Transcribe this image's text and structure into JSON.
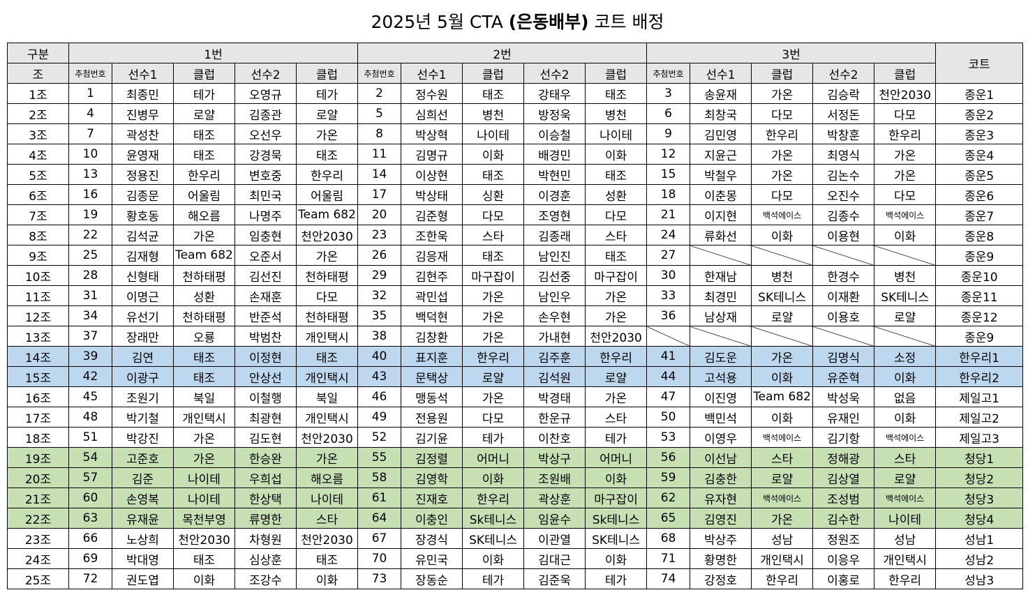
{
  "title": {
    "prefix": "2025년 5월 CTA ",
    "bold": "(은동배부)",
    "suffix": " 코트 배정"
  },
  "table": {
    "header": {
      "section": "구분",
      "group": "조",
      "groups": [
        "1번",
        "2번",
        "3번"
      ],
      "court": "코트",
      "columns": [
        "추첨번호",
        "선수1",
        "클럽",
        "선수2",
        "클럽"
      ]
    },
    "rows": [
      [
        "1조",
        1,
        "최종민",
        "테가",
        "오영규",
        "테가",
        2,
        "정수원",
        "태조",
        "강태우",
        "태조",
        3,
        "송윤재",
        "가온",
        "김승락",
        "천안2030",
        "종운1"
      ],
      [
        "2조",
        4,
        "진병무",
        "로얄",
        "김종관",
        "로얄",
        5,
        "심희선",
        "병천",
        "방정욱",
        "병천",
        6,
        "최창국",
        "다모",
        "서정돈",
        "다모",
        "종운2"
      ],
      [
        "3조",
        7,
        "곽성찬",
        "태조",
        "오선우",
        "가온",
        8,
        "박상혁",
        "나이테",
        "이승철",
        "나이테",
        9,
        "김민영",
        "한우리",
        "박창훈",
        "한우리",
        "종운3"
      ],
      [
        "4조",
        10,
        "윤영재",
        "태조",
        "강경묵",
        "태조",
        11,
        "김명규",
        "이화",
        "배경민",
        "이화",
        12,
        "지윤근",
        "가온",
        "최영식",
        "가온",
        "종운4"
      ],
      [
        "5조",
        13,
        "정용진",
        "한우리",
        "변호중",
        "한우리",
        14,
        "이상현",
        "태조",
        "박현민",
        "태조",
        15,
        "박철우",
        "가온",
        "김논수",
        "가온",
        "종운5"
      ],
      [
        "6조",
        16,
        "김종문",
        "어울림",
        "최민국",
        "어울림",
        17,
        "박상태",
        "싱환",
        "이경훈",
        "성환",
        18,
        "이춘몽",
        "다모",
        "오진수",
        "다모",
        "종운6"
      ],
      [
        "7조",
        19,
        "황호동",
        "해오름",
        "나명주",
        "Team 682",
        20,
        "김준형",
        "다모",
        "조영현",
        "다모",
        21,
        "이지현",
        "백석에이스",
        "김종수",
        "백석에이스",
        "종운7"
      ],
      [
        "8조",
        22,
        "김석균",
        "가온",
        "임충현",
        "천안2030",
        23,
        "조한욱",
        "스타",
        "김종래",
        "스타",
        24,
        "류화선",
        "이화",
        "이용현",
        "이화",
        "종운8"
      ],
      [
        "9조",
        25,
        "김재형",
        "Team 682",
        "오준서",
        "가온",
        26,
        "김응재",
        "태조",
        "남인진",
        "태조",
        27,
        null,
        null,
        null,
        null,
        "종운9"
      ],
      [
        "10조",
        28,
        "신형태",
        "천하태평",
        "김선진",
        "천하태평",
        29,
        "김현주",
        "마구잡이",
        "김선중",
        "마구잡이",
        30,
        "한재남",
        "병천",
        "한경수",
        "병천",
        "종운10"
      ],
      [
        "11조",
        31,
        "이명근",
        "성환",
        "손재훈",
        "다모",
        32,
        "곽민섭",
        "가온",
        "남인우",
        "가온",
        33,
        "최경민",
        "SK테니스",
        "이재환",
        "SK테니스",
        "종운11"
      ],
      [
        "12조",
        34,
        "유선기",
        "천하태평",
        "반준석",
        "천하태평",
        35,
        "백덕현",
        "가온",
        "손우현",
        "가온",
        36,
        "남상재",
        "로얄",
        "이용호",
        "로얄",
        "종운12"
      ],
      [
        "13조",
        37,
        "장래만",
        "오룡",
        "박범찬",
        "개인택시",
        38,
        "김창환",
        "가온",
        "가내현",
        "천안2030",
        null,
        null,
        null,
        null,
        null,
        "종운9"
      ],
      [
        "14조",
        39,
        "김연",
        "태조",
        "이정현",
        "태조",
        40,
        "표지훈",
        "한우리",
        "김주훈",
        "한우리",
        41,
        "김도운",
        "가온",
        "김명식",
        "소정",
        "한우리1"
      ],
      [
        "15조",
        42,
        "이광구",
        "태조",
        "안상선",
        "개인택시",
        43,
        "문택상",
        "로얄",
        "김석원",
        "로얄",
        44,
        "고석용",
        "이화",
        "유준혁",
        "이화",
        "한우리2"
      ],
      [
        "16조",
        45,
        "조원기",
        "북일",
        "이철행",
        "북일",
        46,
        "맹동석",
        "가온",
        "박경태",
        "가온",
        47,
        "이진영",
        "Team 682",
        "박성욱",
        "없음",
        "제일고1"
      ],
      [
        "17조",
        48,
        "박기철",
        "개인택시",
        "최광현",
        "개인택시",
        49,
        "전용원",
        "다모",
        "한운규",
        "스타",
        50,
        "백민석",
        "이화",
        "유재인",
        "이화",
        "제일고2"
      ],
      [
        "18조",
        51,
        "박강진",
        "가온",
        "김도현",
        "천안2030",
        52,
        "김기윤",
        "테가",
        "이찬호",
        "테가",
        53,
        "이영우",
        "백석에이스",
        "김기항",
        "백석에이스",
        "제일고3"
      ],
      [
        "19조",
        54,
        "고준호",
        "가온",
        "한승완",
        "가온",
        55,
        "김정렬",
        "어머니",
        "박상구",
        "어머니",
        56,
        "이선남",
        "스타",
        "정해광",
        "스타",
        "청당1"
      ],
      [
        "20조",
        57,
        "김준",
        "나이테",
        "우희섭",
        "해오름",
        58,
        "김영학",
        "이화",
        "조원배",
        "이화",
        59,
        "김충한",
        "로얄",
        "김상열",
        "로얄",
        "청당2"
      ],
      [
        "21조",
        60,
        "손영복",
        "나이테",
        "한상택",
        "나이테",
        61,
        "진재호",
        "한우리",
        "곽상훈",
        "마구잡이",
        62,
        "유자현",
        "백석에이스",
        "조성범",
        "백석에이스",
        "청당3"
      ],
      [
        "22조",
        63,
        "유재윤",
        "목천부영",
        "류명한",
        "스타",
        64,
        "이충인",
        "Sk테니스",
        "임윤수",
        "Sk테니스",
        65,
        "김영진",
        "가온",
        "김수한",
        "나이테",
        "청당4"
      ],
      [
        "23조",
        66,
        "노상희",
        "천안2030",
        "차형원",
        "천안2030",
        67,
        "장경식",
        "SK테니스",
        "이관열",
        "SK테니스",
        68,
        "박상주",
        "성남",
        "정원조",
        "성남",
        "성남1"
      ],
      [
        "24조",
        69,
        "박대영",
        "태조",
        "심상훈",
        "태조",
        70,
        "유민국",
        "이화",
        "김대근",
        "이화",
        71,
        "황명한",
        "개인택시",
        "이응우",
        "개인택시",
        "성남2"
      ],
      [
        "25조",
        72,
        "권도엽",
        "이화",
        "조강수",
        "이화",
        73,
        "장동순",
        "테가",
        "김준욱",
        "테가",
        74,
        "강정호",
        "한우리",
        "이홍로",
        "한우리",
        "성남3"
      ]
    ]
  }
}
